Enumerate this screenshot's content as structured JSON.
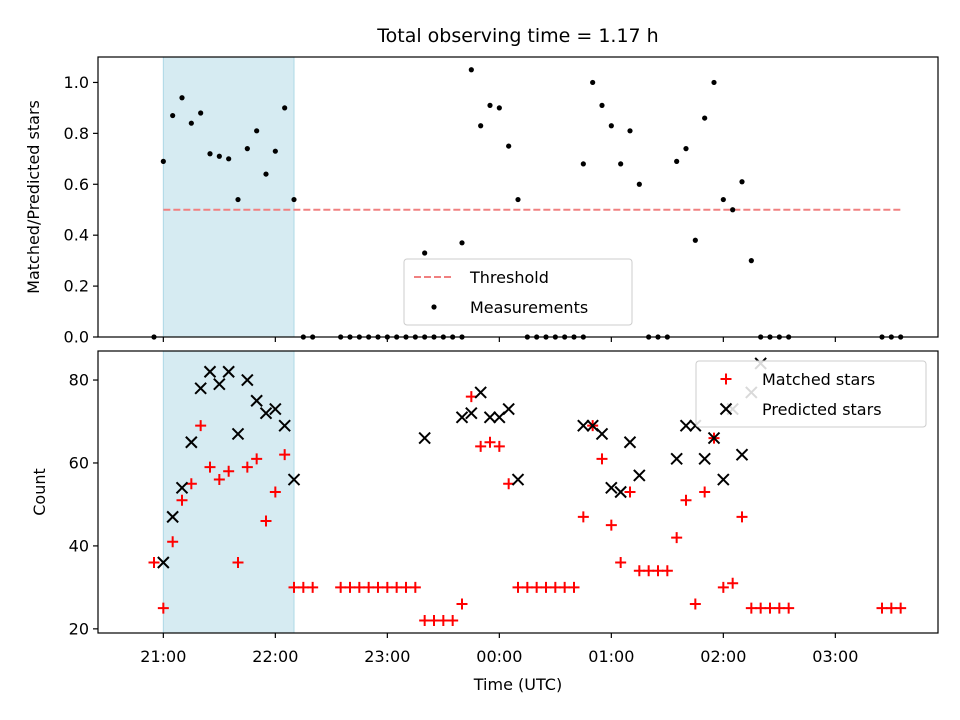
{
  "chart_data": [
    {
      "type": "scatter",
      "title": "Total observing time = 1.17 h",
      "xlabel": "",
      "ylabel": "Matched/Predicted stars",
      "ylim": [
        0,
        1.1
      ],
      "yticks": [
        0.0,
        0.2,
        0.4,
        0.6,
        0.8,
        1.0
      ],
      "ytick_labels": [
        "0.0",
        "0.2",
        "0.4",
        "0.6",
        "0.8",
        "1.0"
      ],
      "xlim": [
        "2022-01-01T20:25",
        "2022-01-02T03:55"
      ],
      "x_tick_labels_visible": false,
      "grid": false,
      "legend_position": "lower-center",
      "shaded_region": {
        "x_start": "2022-01-01T21:00",
        "x_end": "2022-01-01T22:10",
        "color": "#add8e6"
      },
      "threshold": {
        "name": "Threshold",
        "value": 0.5,
        "x_start": "2022-01-01T21:00",
        "x_end": "2022-01-02T03:35",
        "color": "#f08080",
        "style": "dashed"
      },
      "series": [
        {
          "name": "Measurements",
          "color": "#000000",
          "marker": "dot",
          "points": [
            [
              "2022-01-01T20:55",
              0.0
            ],
            [
              "2022-01-01T21:00",
              0.69
            ],
            [
              "2022-01-01T21:05",
              0.87
            ],
            [
              "2022-01-01T21:10",
              0.94
            ],
            [
              "2022-01-01T21:15",
              0.84
            ],
            [
              "2022-01-01T21:20",
              0.88
            ],
            [
              "2022-01-01T21:25",
              0.72
            ],
            [
              "2022-01-01T21:30",
              0.71
            ],
            [
              "2022-01-01T21:35",
              0.7
            ],
            [
              "2022-01-01T21:40",
              0.54
            ],
            [
              "2022-01-01T21:45",
              0.74
            ],
            [
              "2022-01-01T21:50",
              0.81
            ],
            [
              "2022-01-01T21:55",
              0.64
            ],
            [
              "2022-01-01T22:00",
              0.73
            ],
            [
              "2022-01-01T22:05",
              0.9
            ],
            [
              "2022-01-01T22:10",
              0.54
            ],
            [
              "2022-01-01T22:15",
              0.0
            ],
            [
              "2022-01-01T22:20",
              0.0
            ],
            [
              "2022-01-01T22:35",
              0.0
            ],
            [
              "2022-01-01T22:40",
              0.0
            ],
            [
              "2022-01-01T22:45",
              0.0
            ],
            [
              "2022-01-01T22:50",
              0.0
            ],
            [
              "2022-01-01T22:55",
              0.0
            ],
            [
              "2022-01-01T23:00",
              0.0
            ],
            [
              "2022-01-01T23:05",
              0.0
            ],
            [
              "2022-01-01T23:10",
              0.0
            ],
            [
              "2022-01-01T23:15",
              0.0
            ],
            [
              "2022-01-01T23:20",
              0.0
            ],
            [
              "2022-01-01T23:20",
              0.33
            ],
            [
              "2022-01-01T23:25",
              0.0
            ],
            [
              "2022-01-01T23:30",
              0.0
            ],
            [
              "2022-01-01T23:35",
              0.0
            ],
            [
              "2022-01-01T23:40",
              0.0
            ],
            [
              "2022-01-01T23:40",
              0.37
            ],
            [
              "2022-01-01T23:45",
              1.05
            ],
            [
              "2022-01-01T23:50",
              0.83
            ],
            [
              "2022-01-01T23:55",
              0.91
            ],
            [
              "2022-01-02T00:00",
              0.9
            ],
            [
              "2022-01-02T00:05",
              0.75
            ],
            [
              "2022-01-02T00:10",
              0.54
            ],
            [
              "2022-01-02T00:15",
              0.0
            ],
            [
              "2022-01-02T00:20",
              0.0
            ],
            [
              "2022-01-02T00:25",
              0.0
            ],
            [
              "2022-01-02T00:30",
              0.0
            ],
            [
              "2022-01-02T00:35",
              0.0
            ],
            [
              "2022-01-02T00:40",
              0.0
            ],
            [
              "2022-01-02T00:45",
              0.0
            ],
            [
              "2022-01-02T00:45",
              0.68
            ],
            [
              "2022-01-02T00:50",
              1.0
            ],
            [
              "2022-01-02T00:55",
              0.91
            ],
            [
              "2022-01-02T01:00",
              0.83
            ],
            [
              "2022-01-02T01:05",
              0.68
            ],
            [
              "2022-01-02T01:10",
              0.81
            ],
            [
              "2022-01-02T01:15",
              0.6
            ],
            [
              "2022-01-02T01:20",
              0.0
            ],
            [
              "2022-01-02T01:25",
              0.0
            ],
            [
              "2022-01-02T01:30",
              0.0
            ],
            [
              "2022-01-02T01:35",
              0.69
            ],
            [
              "2022-01-02T01:40",
              0.74
            ],
            [
              "2022-01-02T01:45",
              0.38
            ],
            [
              "2022-01-02T01:50",
              0.86
            ],
            [
              "2022-01-02T01:55",
              1.0
            ],
            [
              "2022-01-02T02:00",
              0.54
            ],
            [
              "2022-01-02T02:05",
              0.5
            ],
            [
              "2022-01-02T02:10",
              0.61
            ],
            [
              "2022-01-02T02:15",
              0.3
            ],
            [
              "2022-01-02T02:20",
              0.0
            ],
            [
              "2022-01-02T02:25",
              0.0
            ],
            [
              "2022-01-02T02:30",
              0.0
            ],
            [
              "2022-01-02T02:35",
              0.0
            ],
            [
              "2022-01-02T03:25",
              0.0
            ],
            [
              "2022-01-02T03:30",
              0.0
            ],
            [
              "2022-01-02T03:35",
              0.0
            ]
          ]
        }
      ]
    },
    {
      "type": "scatter",
      "title": "",
      "xlabel": "Time (UTC)",
      "ylabel": "Count",
      "ylim": [
        19,
        87
      ],
      "yticks": [
        20,
        40,
        60,
        80
      ],
      "ytick_labels": [
        "20",
        "40",
        "60",
        "80"
      ],
      "xlim": [
        "2022-01-01T20:25",
        "2022-01-02T03:55"
      ],
      "xticks": [
        "2022-01-01T21:00",
        "2022-01-01T22:00",
        "2022-01-01T23:00",
        "2022-01-02T00:00",
        "2022-01-02T01:00",
        "2022-01-02T02:00",
        "2022-01-02T03:00"
      ],
      "xtick_labels": [
        "21:00",
        "22:00",
        "23:00",
        "00:00",
        "01:00",
        "02:00",
        "03:00"
      ],
      "grid": false,
      "legend_position": "top-right",
      "shaded_region": {
        "x_start": "2022-01-01T21:00",
        "x_end": "2022-01-01T22:10",
        "color": "#add8e6"
      },
      "series": [
        {
          "name": "Matched stars",
          "color": "#ff0000",
          "marker": "plus",
          "points": [
            [
              "2022-01-01T20:55",
              36
            ],
            [
              "2022-01-01T21:00",
              25
            ],
            [
              "2022-01-01T21:05",
              41
            ],
            [
              "2022-01-01T21:10",
              51
            ],
            [
              "2022-01-01T21:15",
              55
            ],
            [
              "2022-01-01T21:20",
              69
            ],
            [
              "2022-01-01T21:25",
              59
            ],
            [
              "2022-01-01T21:30",
              56
            ],
            [
              "2022-01-01T21:35",
              58
            ],
            [
              "2022-01-01T21:40",
              36
            ],
            [
              "2022-01-01T21:45",
              59
            ],
            [
              "2022-01-01T21:50",
              61
            ],
            [
              "2022-01-01T21:55",
              46
            ],
            [
              "2022-01-01T22:00",
              53
            ],
            [
              "2022-01-01T22:05",
              62
            ],
            [
              "2022-01-01T22:10",
              30
            ],
            [
              "2022-01-01T22:15",
              30
            ],
            [
              "2022-01-01T22:20",
              30
            ],
            [
              "2022-01-01T22:35",
              30
            ],
            [
              "2022-01-01T22:40",
              30
            ],
            [
              "2022-01-01T22:45",
              30
            ],
            [
              "2022-01-01T22:50",
              30
            ],
            [
              "2022-01-01T22:55",
              30
            ],
            [
              "2022-01-01T23:00",
              30
            ],
            [
              "2022-01-01T23:05",
              30
            ],
            [
              "2022-01-01T23:10",
              30
            ],
            [
              "2022-01-01T23:15",
              30
            ],
            [
              "2022-01-01T23:20",
              22
            ],
            [
              "2022-01-01T23:25",
              22
            ],
            [
              "2022-01-01T23:30",
              22
            ],
            [
              "2022-01-01T23:35",
              22
            ],
            [
              "2022-01-01T23:40",
              26
            ],
            [
              "2022-01-01T23:45",
              76
            ],
            [
              "2022-01-01T23:50",
              64
            ],
            [
              "2022-01-01T23:55",
              65
            ],
            [
              "2022-01-02T00:00",
              64
            ],
            [
              "2022-01-02T00:05",
              55
            ],
            [
              "2022-01-02T00:10",
              30
            ],
            [
              "2022-01-02T00:15",
              30
            ],
            [
              "2022-01-02T00:20",
              30
            ],
            [
              "2022-01-02T00:25",
              30
            ],
            [
              "2022-01-02T00:30",
              30
            ],
            [
              "2022-01-02T00:35",
              30
            ],
            [
              "2022-01-02T00:40",
              30
            ],
            [
              "2022-01-02T00:45",
              47
            ],
            [
              "2022-01-02T00:50",
              69
            ],
            [
              "2022-01-02T00:55",
              61
            ],
            [
              "2022-01-02T01:00",
              45
            ],
            [
              "2022-01-02T01:05",
              36
            ],
            [
              "2022-01-02T01:10",
              53
            ],
            [
              "2022-01-02T01:15",
              34
            ],
            [
              "2022-01-02T01:20",
              34
            ],
            [
              "2022-01-02T01:25",
              34
            ],
            [
              "2022-01-02T01:30",
              34
            ],
            [
              "2022-01-02T01:35",
              42
            ],
            [
              "2022-01-02T01:40",
              51
            ],
            [
              "2022-01-02T01:45",
              26
            ],
            [
              "2022-01-02T01:50",
              53
            ],
            [
              "2022-01-02T01:55",
              66
            ],
            [
              "2022-01-02T02:00",
              30
            ],
            [
              "2022-01-02T02:05",
              31
            ],
            [
              "2022-01-02T02:10",
              47
            ],
            [
              "2022-01-02T02:15",
              25
            ],
            [
              "2022-01-02T02:20",
              25
            ],
            [
              "2022-01-02T02:25",
              25
            ],
            [
              "2022-01-02T02:30",
              25
            ],
            [
              "2022-01-02T02:35",
              25
            ],
            [
              "2022-01-02T03:25",
              25
            ],
            [
              "2022-01-02T03:30",
              25
            ],
            [
              "2022-01-02T03:35",
              25
            ]
          ]
        },
        {
          "name": "Predicted stars",
          "color": "#000000",
          "marker": "x",
          "points": [
            [
              "2022-01-01T21:00",
              36
            ],
            [
              "2022-01-01T21:05",
              47
            ],
            [
              "2022-01-01T21:10",
              54
            ],
            [
              "2022-01-01T21:15",
              65
            ],
            [
              "2022-01-01T21:20",
              78
            ],
            [
              "2022-01-01T21:25",
              82
            ],
            [
              "2022-01-01T21:30",
              79
            ],
            [
              "2022-01-01T21:35",
              82
            ],
            [
              "2022-01-01T21:40",
              67
            ],
            [
              "2022-01-01T21:45",
              80
            ],
            [
              "2022-01-01T21:50",
              75
            ],
            [
              "2022-01-01T21:55",
              72
            ],
            [
              "2022-01-01T22:00",
              73
            ],
            [
              "2022-01-01T22:05",
              69
            ],
            [
              "2022-01-01T22:10",
              56
            ],
            [
              "2022-01-01T23:20",
              66
            ],
            [
              "2022-01-01T23:40",
              71
            ],
            [
              "2022-01-01T23:45",
              72
            ],
            [
              "2022-01-01T23:50",
              77
            ],
            [
              "2022-01-01T23:55",
              71
            ],
            [
              "2022-01-02T00:00",
              71
            ],
            [
              "2022-01-02T00:05",
              73
            ],
            [
              "2022-01-02T00:10",
              56
            ],
            [
              "2022-01-02T00:45",
              69
            ],
            [
              "2022-01-02T00:50",
              69
            ],
            [
              "2022-01-02T00:55",
              67
            ],
            [
              "2022-01-02T01:00",
              54
            ],
            [
              "2022-01-02T01:05",
              53
            ],
            [
              "2022-01-02T01:10",
              65
            ],
            [
              "2022-01-02T01:15",
              57
            ],
            [
              "2022-01-02T01:35",
              61
            ],
            [
              "2022-01-02T01:40",
              69
            ],
            [
              "2022-01-02T01:45",
              69
            ],
            [
              "2022-01-02T01:50",
              61
            ],
            [
              "2022-01-02T01:55",
              66
            ],
            [
              "2022-01-02T02:00",
              56
            ],
            [
              "2022-01-02T02:05",
              73
            ],
            [
              "2022-01-02T02:10",
              62
            ],
            [
              "2022-01-02T02:15",
              77
            ],
            [
              "2022-01-02T02:20",
              84
            ]
          ]
        }
      ]
    }
  ]
}
